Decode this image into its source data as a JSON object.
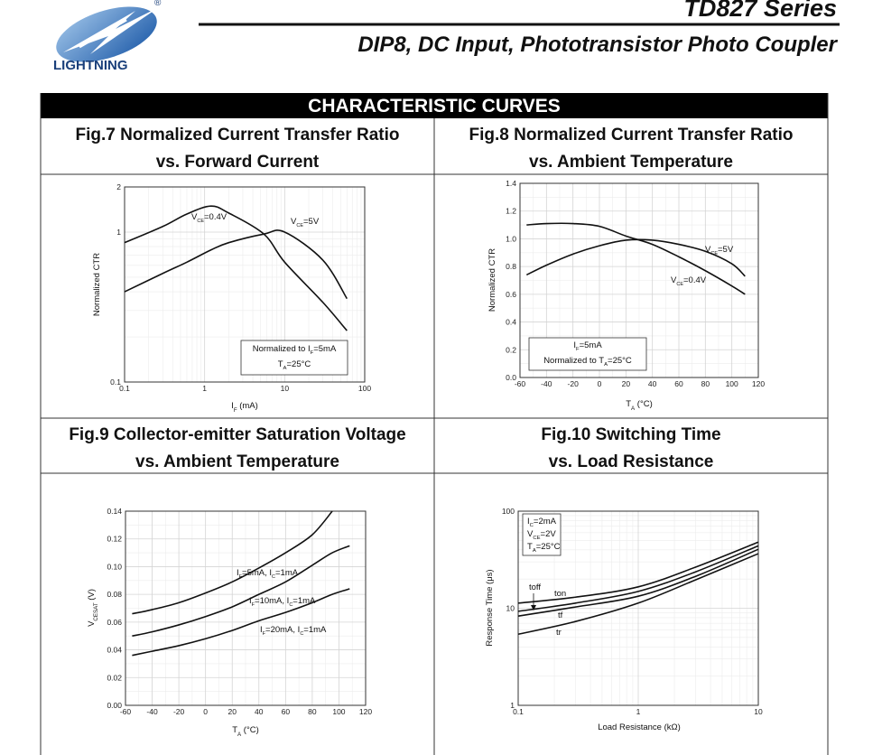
{
  "header": {
    "brand": "LIGHTNING",
    "registered": "®",
    "series": "TD827 Series",
    "subtitle": "DIP8, DC Input, Phototransistor Photo Coupler"
  },
  "section_title": "CHARACTERISTIC CURVES",
  "chart_data": [
    {
      "type": "line",
      "title": [
        "Fig.7 Normalized Current Transfer Ratio",
        "vs. Forward Current"
      ],
      "xlabel": [
        "I",
        "F",
        " (mA)"
      ],
      "ylabel": [
        "Normalized CTR"
      ],
      "xscale": "log",
      "yscale": "log",
      "xlim": [
        0.1,
        100
      ],
      "ylim": [
        0.1,
        2
      ],
      "xticks": [
        0.1,
        1,
        10,
        100
      ],
      "yticks": [
        0.1,
        1,
        2
      ],
      "grid": true,
      "minor_grid": true,
      "x": [
        0.1,
        0.3,
        0.6,
        1.2,
        2,
        5.5,
        10,
        30,
        60
      ],
      "series": [
        {
          "name": [
            "V",
            "CE",
            "=0.4V"
          ],
          "color": "#111111",
          "values": [
            0.85,
            1.09,
            1.32,
            1.49,
            1.34,
            0.97,
            0.63,
            0.34,
            0.22
          ]
        },
        {
          "name": [
            "V",
            "CE",
            "=5V"
          ],
          "color": "#111111",
          "values": [
            0.4,
            0.53,
            0.63,
            0.76,
            0.85,
            0.97,
            1.0,
            0.65,
            0.36
          ]
        }
      ],
      "annotations": [
        [
          "Normalized to I",
          "F",
          "=5mA"
        ],
        [
          "T",
          "A",
          "=25°C"
        ]
      ]
    },
    {
      "type": "line",
      "title": [
        "Fig.8 Normalized Current Transfer Ratio",
        "vs. Ambient Temperature"
      ],
      "xlabel": [
        "T",
        "A",
        " (°C)"
      ],
      "ylabel": [
        "Normalized CTR"
      ],
      "xlim": [
        -60,
        120
      ],
      "ylim": [
        0,
        1.4
      ],
      "xticks": [
        -60,
        -40,
        -20,
        0,
        20,
        40,
        60,
        80,
        100,
        120
      ],
      "yticks": [
        {
          "value": 0,
          "label": "0.0"
        },
        0.2,
        0.4,
        0.6,
        0.8,
        {
          "value": 1,
          "label": "1.0"
        },
        1.2,
        1.4
      ],
      "grid": true,
      "minor_grid": true,
      "x": [
        -55,
        -40,
        -20,
        0,
        20,
        40,
        60,
        80,
        100,
        110
      ],
      "series": [
        {
          "name": [
            "V",
            "CE",
            "=5V"
          ],
          "color": "#111111",
          "values": [
            0.74,
            0.81,
            0.89,
            0.95,
            0.99,
            0.99,
            0.96,
            0.91,
            0.82,
            0.73
          ]
        },
        {
          "name": [
            "V",
            "CE",
            "=0.4V"
          ],
          "color": "#111111",
          "values": [
            1.1,
            1.11,
            1.11,
            1.09,
            1.02,
            0.96,
            0.87,
            0.77,
            0.66,
            0.6
          ]
        }
      ],
      "annotations": [
        [
          "I",
          "F",
          "=5mA"
        ],
        [
          "Normalized to T",
          "A",
          "=25°C"
        ]
      ]
    },
    {
      "type": "line",
      "title": [
        "Fig.9 Collector-emitter Saturation Voltage",
        "vs. Ambient Temperature"
      ],
      "xlabel": [
        "T",
        "A",
        " (°C)"
      ],
      "ylabel": [
        "V",
        "CESAT",
        " (V)"
      ],
      "xlim": [
        -60,
        120
      ],
      "ylim": [
        0,
        0.14
      ],
      "xticks": [
        -60,
        -40,
        -20,
        0,
        20,
        40,
        60,
        80,
        100,
        120
      ],
      "yticks": [
        {
          "value": 0,
          "label": "0.00"
        },
        0.02,
        0.04,
        0.06,
        0.08,
        {
          "value": 0.1,
          "label": "0.10"
        },
        0.12,
        0.14
      ],
      "grid": true,
      "minor_grid": true,
      "x": [
        -55,
        -40,
        -20,
        0,
        20,
        40,
        60,
        80,
        95,
        108
      ],
      "series": [
        {
          "name": [
            "I",
            "F",
            "=5mA, I",
            "C",
            "=1mA"
          ],
          "color": "#111111",
          "values": [
            0.066,
            0.069,
            0.074,
            0.081,
            0.089,
            0.099,
            0.11,
            0.123,
            0.14,
            null
          ]
        },
        {
          "name": [
            "I",
            "F",
            "=10mA, I",
            "C",
            "=1mA"
          ],
          "color": "#111111",
          "values": [
            0.05,
            0.053,
            0.058,
            0.064,
            0.071,
            0.08,
            0.089,
            0.101,
            0.11,
            0.115
          ]
        },
        {
          "name": [
            "I",
            "F",
            "=20mA, I",
            "C",
            "=1mA"
          ],
          "color": "#111111",
          "values": [
            0.036,
            0.039,
            0.043,
            0.048,
            0.054,
            0.061,
            0.067,
            0.074,
            0.08,
            0.084
          ]
        }
      ]
    },
    {
      "type": "line",
      "title": [
        "Fig.10 Switching Time",
        "vs. Load Resistance"
      ],
      "xlabel": [
        "Load Resistance (kΩ)"
      ],
      "ylabel": [
        "Response Time (μs)"
      ],
      "xscale": "log",
      "yscale": "log",
      "xlim": [
        0.1,
        10
      ],
      "ylim": [
        1,
        100
      ],
      "xticks": [
        0.1,
        1,
        10
      ],
      "yticks": [
        1,
        10,
        100
      ],
      "grid": true,
      "minor_grid": true,
      "x": [
        0.1,
        0.3,
        1,
        3,
        10
      ],
      "series": [
        {
          "name": [
            "ton"
          ],
          "color": "#111111",
          "values": [
            11.3,
            13,
            16.6,
            26.5,
            48
          ]
        },
        {
          "name": [
            "toff"
          ],
          "color": "#111111",
          "values": [
            9.3,
            11.3,
            14.9,
            23.7,
            44
          ]
        },
        {
          "name": [
            "tf"
          ],
          "color": "#111111",
          "values": [
            8.3,
            10.3,
            13.3,
            21.3,
            40.5
          ]
        },
        {
          "name": [
            "tr"
          ],
          "color": "#111111",
          "values": [
            5.4,
            7.3,
            11.3,
            19.6,
            36.5
          ]
        }
      ],
      "annotations": [
        [
          "I",
          "C",
          "=2mA"
        ],
        [
          "V",
          "CE",
          "=2V"
        ],
        [
          "T",
          "A",
          "=25°C"
        ]
      ]
    }
  ]
}
